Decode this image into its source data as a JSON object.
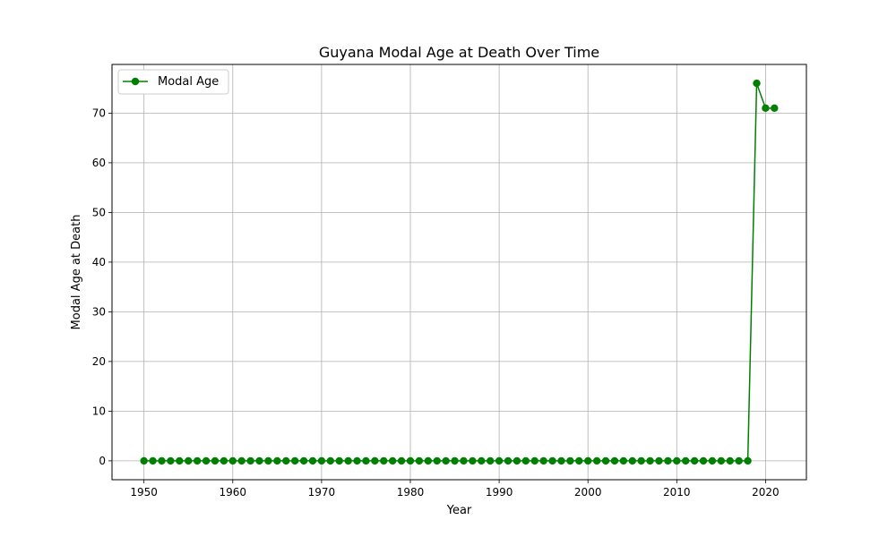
{
  "chart_data": {
    "type": "line",
    "title": "Guyana Modal Age at Death Over Time",
    "xlabel": "Year",
    "ylabel": "Modal Age at Death",
    "xlim": [
      1946.4,
      2024.6
    ],
    "ylim": [
      -3.8,
      79.8
    ],
    "xticks": [
      1950,
      1960,
      1970,
      1980,
      1990,
      2000,
      2010,
      2020
    ],
    "yticks": [
      0,
      10,
      20,
      30,
      40,
      50,
      60,
      70
    ],
    "grid": true,
    "legend_position": "top-left",
    "color": "#008000",
    "series": [
      {
        "name": "Modal Age",
        "x": [
          1950,
          1951,
          1952,
          1953,
          1954,
          1955,
          1956,
          1957,
          1958,
          1959,
          1960,
          1961,
          1962,
          1963,
          1964,
          1965,
          1966,
          1967,
          1968,
          1969,
          1970,
          1971,
          1972,
          1973,
          1974,
          1975,
          1976,
          1977,
          1978,
          1979,
          1980,
          1981,
          1982,
          1983,
          1984,
          1985,
          1986,
          1987,
          1988,
          1989,
          1990,
          1991,
          1992,
          1993,
          1994,
          1995,
          1996,
          1997,
          1998,
          1999,
          2000,
          2001,
          2002,
          2003,
          2004,
          2005,
          2006,
          2007,
          2008,
          2009,
          2010,
          2011,
          2012,
          2013,
          2014,
          2015,
          2016,
          2017,
          2018,
          2019,
          2020,
          2021
        ],
        "y": [
          0,
          0,
          0,
          0,
          0,
          0,
          0,
          0,
          0,
          0,
          0,
          0,
          0,
          0,
          0,
          0,
          0,
          0,
          0,
          0,
          0,
          0,
          0,
          0,
          0,
          0,
          0,
          0,
          0,
          0,
          0,
          0,
          0,
          0,
          0,
          0,
          0,
          0,
          0,
          0,
          0,
          0,
          0,
          0,
          0,
          0,
          0,
          0,
          0,
          0,
          0,
          0,
          0,
          0,
          0,
          0,
          0,
          0,
          0,
          0,
          0,
          0,
          0,
          0,
          0,
          0,
          0,
          0,
          0,
          76,
          71,
          71
        ]
      }
    ]
  }
}
